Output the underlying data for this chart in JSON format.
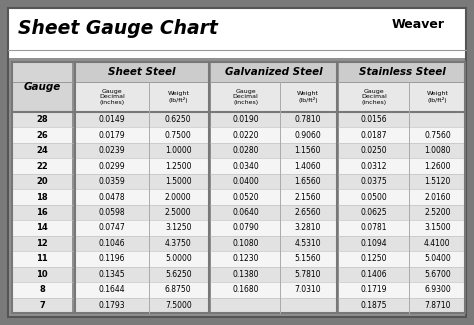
{
  "title": "Sheet Gauge Chart",
  "bg_outer": "#7a7a7a",
  "bg_white": "#ffffff",
  "bg_table_area": "#888888",
  "header1_bg": "#c8c8c8",
  "header2_bg": "#e0e0e0",
  "row_even_bg": "#d8d8d8",
  "row_odd_bg": "#f2f2f2",
  "divider_color": "#888888",
  "section_headers": [
    "Sheet Steel",
    "Galvanized Steel",
    "Stainless Steel"
  ],
  "gauges": [
    28,
    26,
    24,
    22,
    20,
    18,
    16,
    14,
    12,
    11,
    10,
    8,
    7
  ],
  "sheet_steel": [
    [
      "0.0149",
      "0.6250"
    ],
    [
      "0.0179",
      "0.7500"
    ],
    [
      "0.0239",
      "1.0000"
    ],
    [
      "0.0299",
      "1.2500"
    ],
    [
      "0.0359",
      "1.5000"
    ],
    [
      "0.0478",
      "2.0000"
    ],
    [
      "0.0598",
      "2.5000"
    ],
    [
      "0.0747",
      "3.1250"
    ],
    [
      "0.1046",
      "4.3750"
    ],
    [
      "0.1196",
      "5.0000"
    ],
    [
      "0.1345",
      "5.6250"
    ],
    [
      "0.1644",
      "6.8750"
    ],
    [
      "0.1793",
      "7.5000"
    ]
  ],
  "galvanized_steel": [
    [
      "0.0190",
      "0.7810"
    ],
    [
      "0.0220",
      "0.9060"
    ],
    [
      "0.0280",
      "1.1560"
    ],
    [
      "0.0340",
      "1.4060"
    ],
    [
      "0.0400",
      "1.6560"
    ],
    [
      "0.0520",
      "2.1560"
    ],
    [
      "0.0640",
      "2.6560"
    ],
    [
      "0.0790",
      "3.2810"
    ],
    [
      "0.1080",
      "4.5310"
    ],
    [
      "0.1230",
      "5.1560"
    ],
    [
      "0.1380",
      "5.7810"
    ],
    [
      "0.1680",
      "7.0310"
    ],
    [
      "",
      ""
    ]
  ],
  "stainless_steel": [
    [
      "0.0156",
      ""
    ],
    [
      "0.0187",
      "0.7560"
    ],
    [
      "0.0250",
      "1.0080"
    ],
    [
      "0.0312",
      "1.2600"
    ],
    [
      "0.0375",
      "1.5120"
    ],
    [
      "0.0500",
      "2.0160"
    ],
    [
      "0.0625",
      "2.5200"
    ],
    [
      "0.0781",
      "3.1500"
    ],
    [
      "0.1094",
      "4.4100"
    ],
    [
      "0.1250",
      "5.0400"
    ],
    [
      "0.1406",
      "5.6700"
    ],
    [
      "0.1719",
      "6.9300"
    ],
    [
      "0.1875",
      "7.8710"
    ]
  ],
  "weaver_text": "Weaver",
  "weight_label": "lb/ft²"
}
